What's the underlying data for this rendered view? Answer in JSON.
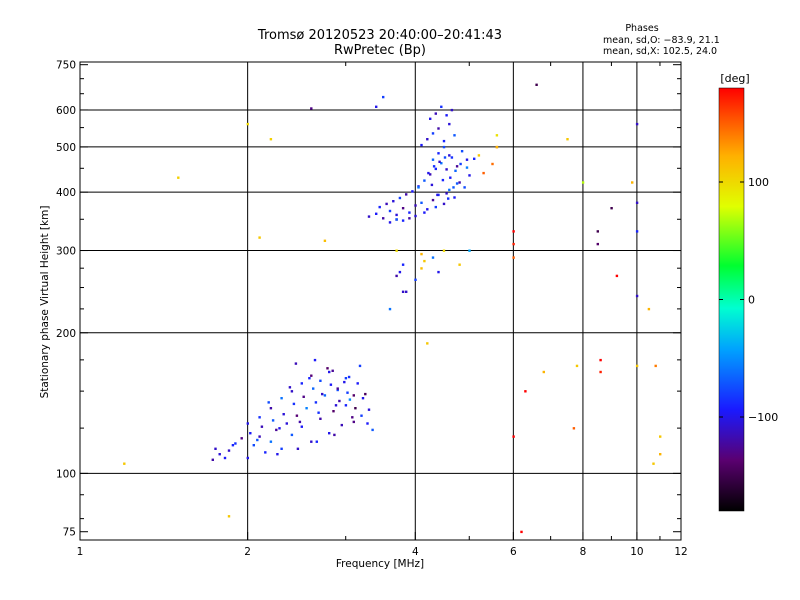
{
  "chart_data": {
    "type": "scatter",
    "title": "Tromsø 20120523 20:40:00–20:41:43",
    "subtitle": "RwPretec (Bp)",
    "info": {
      "heading": "Phases",
      "line1": "mean, sd,O: −83.9, 21.1",
      "line2": "mean, sd,X: 102.5, 24.0"
    },
    "xlabel": "Frequency [MHz]",
    "ylabel": "Stationary phase Virtual Height [km]",
    "x_scale": "log",
    "y_scale": "log",
    "xlim": [
      1,
      12
    ],
    "ylim": [
      72,
      760
    ],
    "x_ticks": [
      1,
      2,
      4,
      6,
      8,
      10,
      12
    ],
    "x_tick_labels": [
      "1",
      "2",
      "4",
      "6",
      "8",
      "10",
      "12"
    ],
    "y_ticks": [
      75,
      100,
      200,
      300,
      400,
      500,
      600,
      750
    ],
    "y_tick_labels": [
      "75",
      "100",
      "200",
      "300",
      "400",
      "500",
      "600",
      "750"
    ],
    "grid": true,
    "colorbar": {
      "label": "[deg]",
      "range": [
        -180,
        180
      ],
      "ticks": [
        100,
        0,
        -100
      ],
      "tick_labels": [
        "100",
        "0",
        "−100"
      ]
    },
    "cluster_E": {
      "x": [
        1.73,
        1.78,
        1.82,
        1.85,
        1.9,
        1.95,
        2.0,
        2.05,
        2.1,
        2.15,
        2.2,
        2.25,
        2.3,
        2.35,
        2.4,
        2.45,
        2.5,
        2.55,
        2.6,
        2.65,
        2.7,
        2.75,
        2.8,
        2.85,
        2.9,
        2.95,
        3.0,
        3.05,
        3.1,
        3.15,
        3.2,
        3.25,
        3.3,
        3.35,
        2.0,
        2.1,
        2.2,
        2.3,
        2.4,
        2.5,
        2.6,
        2.7,
        2.8,
        2.9,
        3.0,
        3.1,
        2.02,
        2.12,
        2.22,
        2.32,
        2.42,
        2.52,
        2.62,
        2.72,
        2.82,
        2.92,
        3.02,
        3.12,
        3.22,
        1.75,
        1.88,
        2.08,
        2.28,
        2.48,
        2.68,
        2.88,
        3.08,
        3.28,
        2.18,
        2.38,
        2.58,
        2.78,
        2.98,
        3.18,
        2.44,
        2.64,
        2.84,
        3.04,
        2.26,
        2.46,
        2.66,
        2.86
      ],
      "y": [
        107,
        110,
        108,
        112,
        116,
        119,
        108,
        115,
        120,
        111,
        117,
        124,
        113,
        128,
        121,
        133,
        126,
        138,
        117,
        142,
        131,
        147,
        122,
        136,
        151,
        127,
        140,
        144,
        129,
        156,
        133,
        148,
        137,
        124,
        128,
        132,
        138,
        145,
        150,
        156,
        162,
        158,
        165,
        152,
        160,
        147,
        122,
        126,
        130,
        134,
        141,
        146,
        152,
        148,
        155,
        143,
        149,
        138,
        145,
        113,
        115,
        118,
        125,
        129,
        135,
        140,
        132,
        128,
        142,
        153,
        160,
        168,
        157,
        170,
        172,
        175,
        166,
        161,
        110,
        113,
        117,
        121
      ],
      "phase": [
        -120,
        -105,
        -95,
        -110,
        -85,
        -130,
        -100,
        -75,
        -115,
        -90,
        -60,
        -125,
        -80,
        -105,
        -70,
        -135,
        -95,
        -55,
        -110,
        -85,
        -120,
        -65,
        -100,
        -140,
        -75,
        -115,
        -90,
        -50,
        -130,
        -95,
        -80,
        -145,
        -105,
        -70,
        -100,
        -85,
        -120,
        -60,
        -110,
        -90,
        -135,
        -75,
        -100,
        -125,
        -80,
        -140,
        -95,
        -115,
        -70,
        -105,
        -85,
        -130,
        -65,
        -110,
        -95,
        -120,
        -80,
        -150,
        -100,
        -110,
        -90,
        -70,
        -100,
        -120,
        -85,
        -105,
        -130,
        -95,
        -75,
        -110,
        -90,
        -140,
        -100,
        -80,
        -115,
        -95,
        -125,
        -85,
        -100,
        -110,
        -90,
        -120
      ]
    },
    "cluster_F": {
      "x": [
        3.3,
        3.4,
        3.5,
        3.6,
        3.7,
        3.8,
        3.9,
        4.0,
        4.1,
        4.2,
        4.3,
        4.4,
        4.5,
        4.6,
        4.7,
        4.8,
        4.9,
        5.0,
        3.45,
        3.55,
        3.65,
        3.75,
        3.85,
        3.95,
        4.05,
        4.15,
        4.25,
        4.35,
        4.45,
        4.55,
        4.65,
        4.75,
        4.85,
        4.95,
        4.1,
        4.2,
        4.3,
        4.4,
        4.5,
        4.6,
        4.7,
        4.25,
        4.35,
        4.45,
        4.55,
        4.65,
        4.3,
        4.4,
        4.5,
        4.6,
        3.6,
        3.7,
        3.8,
        3.9,
        4.0,
        4.15,
        4.35,
        4.55,
        4.75,
        4.95,
        5.1,
        4.22,
        4.32,
        4.42,
        4.52,
        4.62,
        4.72,
        4.82,
        4.28,
        4.48,
        4.68,
        4.38,
        4.58
      ],
      "y": [
        355,
        360,
        352,
        365,
        358,
        370,
        362,
        375,
        380,
        368,
        385,
        395,
        378,
        405,
        390,
        420,
        410,
        435,
        372,
        378,
        383,
        389,
        396,
        402,
        412,
        424,
        437,
        449,
        462,
        448,
        475,
        455,
        490,
        470,
        505,
        520,
        535,
        548,
        515,
        560,
        530,
        575,
        590,
        610,
        585,
        600,
        470,
        485,
        500,
        480,
        345,
        350,
        348,
        352,
        356,
        362,
        372,
        398,
        418,
        452,
        472,
        440,
        455,
        465,
        475,
        430,
        445,
        460,
        415,
        425,
        410,
        395,
        388
      ],
      "phase": [
        -110,
        -95,
        -120,
        -80,
        -105,
        -130,
        -90,
        -115,
        -70,
        -100,
        -125,
        -85,
        -110,
        -60,
        -95,
        -120,
        -75,
        -100,
        -90,
        -115,
        -105,
        -80,
        -120,
        -95,
        -100,
        -70,
        -115,
        -90,
        -60,
        -110,
        -85,
        -125,
        -75,
        -100,
        -95,
        -110,
        -80,
        -120,
        -90,
        -105,
        -70,
        -100,
        -115,
        -85,
        -95,
        -110,
        -65,
        -90,
        -75,
        -105,
        -100,
        -115,
        -90,
        -120,
        -105,
        -95,
        -80,
        -110,
        -70,
        -55,
        -90,
        -100,
        -85,
        -110,
        -75,
        -95,
        -65,
        -80,
        -105,
        -90,
        -70,
        -100,
        -85
      ]
    },
    "scattered": {
      "x": [
        1.2,
        1.5,
        2.0,
        2.1,
        2.2,
        2.6,
        2.75,
        3.4,
        3.5,
        3.6,
        3.7,
        3.8,
        4.05,
        4.1,
        4.2,
        4.5,
        4.8,
        5.0,
        5.2,
        5.3,
        5.5,
        5.6,
        5.6,
        5.6,
        6.0,
        6.0,
        6.0,
        6.0,
        6.2,
        6.3,
        6.6,
        6.8,
        7.5,
        7.7,
        7.8,
        8.0,
        8.5,
        8.5,
        8.6,
        8.6,
        9.0,
        9.2,
        9.8,
        10.0,
        10.0,
        10.0,
        10.0,
        10.0,
        10.5,
        10.7,
        10.8,
        11.0,
        11.0,
        3.7,
        3.75,
        3.8,
        3.85,
        4.0,
        4.1,
        4.15,
        4.3,
        4.4,
        3.7,
        1.85
      ],
      "y": [
        105,
        430,
        560,
        320,
        520,
        605,
        315,
        610,
        640,
        225,
        350,
        245,
        410,
        275,
        190,
        300,
        280,
        300,
        480,
        440,
        460,
        500,
        530,
        500,
        330,
        310,
        290,
        120,
        75,
        150,
        680,
        165,
        520,
        125,
        170,
        420,
        310,
        330,
        175,
        165,
        370,
        265,
        420,
        560,
        240,
        330,
        170,
        380,
        225,
        105,
        170,
        120,
        110,
        265,
        270,
        280,
        245,
        260,
        295,
        285,
        290,
        270,
        300,
        81
      ],
      "phase": [
        110,
        105,
        100,
        110,
        105,
        -130,
        115,
        -100,
        -80,
        -60,
        -70,
        -110,
        -60,
        115,
        110,
        100,
        110,
        -40,
        110,
        150,
        145,
        140,
        95,
        120,
        180,
        170,
        150,
        180,
        180,
        180,
        -150,
        120,
        110,
        150,
        110,
        70,
        -140,
        -150,
        180,
        170,
        -150,
        180,
        120,
        -110,
        -110,
        -90,
        110,
        -110,
        120,
        110,
        140,
        110,
        120,
        -120,
        -100,
        -90,
        -110,
        -80,
        120,
        110,
        -60,
        -100,
        100,
        110
      ]
    }
  }
}
